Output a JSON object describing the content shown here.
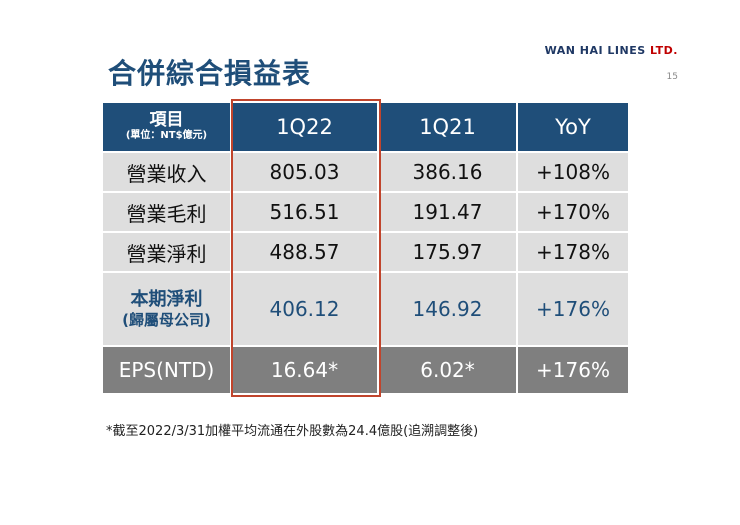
{
  "header": {
    "title": "合併綜合損益表",
    "brand_main": "WAN HAI LINES",
    "brand_suffix": " LTD.",
    "page_number": "15"
  },
  "table": {
    "columns": {
      "item": "項目",
      "unit": "(單位：NT$億元)",
      "q22": "1Q22",
      "q21": "1Q21",
      "yoy": "YoY"
    },
    "rows": [
      {
        "label": "營業收入",
        "q22": "805.03",
        "q21": "386.16",
        "yoy": "+108%"
      },
      {
        "label": "營業毛利",
        "q22": "516.51",
        "q21": "191.47",
        "yoy": "+170%"
      },
      {
        "label": "營業淨利",
        "q22": "488.57",
        "q21": "175.97",
        "yoy": "+178%"
      }
    ],
    "net_income": {
      "label": "本期淨利",
      "sublabel": "(歸屬母公司)",
      "q22": "406.12",
      "q21": "146.92",
      "yoy": "+176%"
    },
    "eps": {
      "label": "EPS(NTD)",
      "q22": "16.64*",
      "q21": "6.02*",
      "yoy": "+176%"
    }
  },
  "footnote": "*截至2022/3/31加權平均流通在外股數為24.4億股(追溯調整後)",
  "colors": {
    "header_bg": "#1f4e79",
    "row_bg": "#dedede",
    "eps_bg": "#7f7f7f",
    "highlight_border": "#c0442c",
    "brand_accent": "#c00000"
  }
}
